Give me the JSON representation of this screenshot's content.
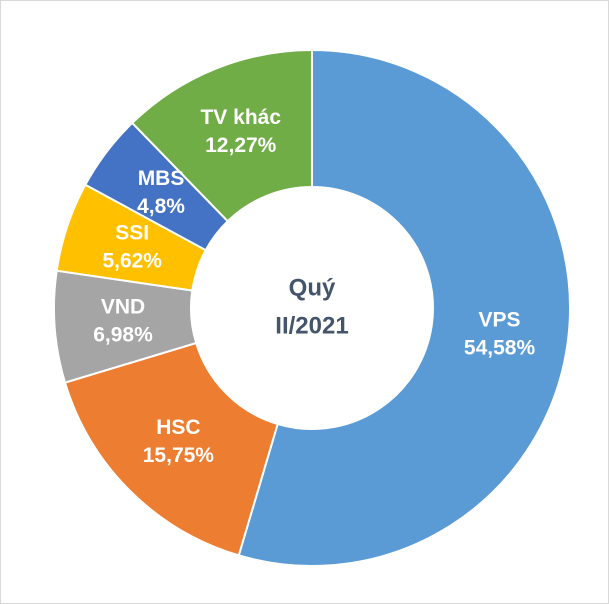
{
  "chart_data": {
    "type": "donut",
    "center_label": [
      "Quý",
      "II/2021"
    ],
    "categories": [
      "VPS",
      "HSC",
      "VND",
      "SSI",
      "MBS",
      "TV khác"
    ],
    "values": [
      54.58,
      15.75,
      6.98,
      5.62,
      4.8,
      12.27
    ],
    "value_labels": [
      "54,58%",
      "15,75%",
      "6,98%",
      "5,62%",
      "4,8%",
      "12,27%"
    ],
    "colors": [
      "#5b9bd5",
      "#ed7d31",
      "#a5a5a5",
      "#ffc000",
      "#4472c4",
      "#70ad47"
    ]
  }
}
